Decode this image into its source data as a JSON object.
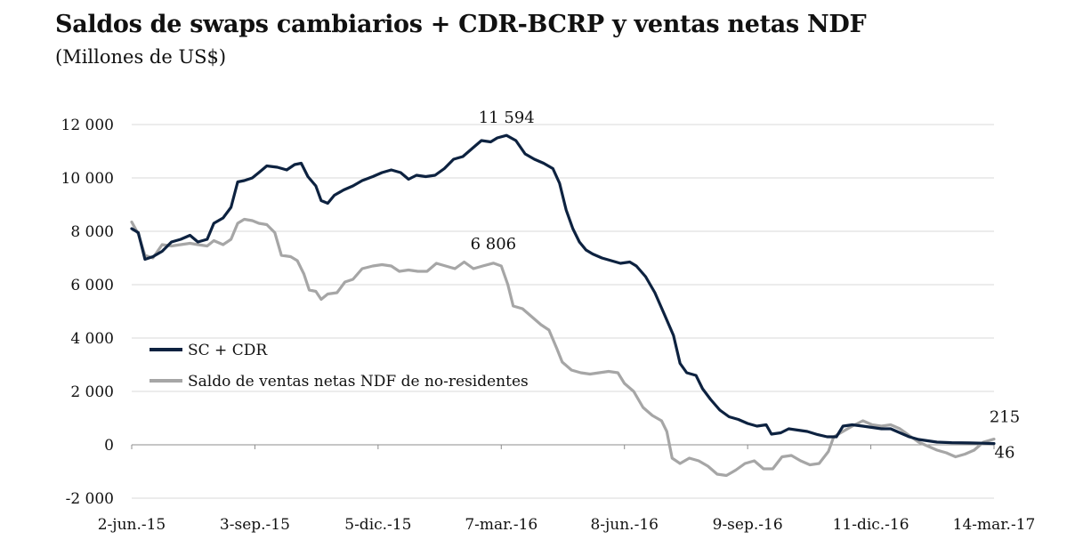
{
  "title": "Saldos de swaps cambiarios + CDR-BCRP y ventas netas NDF",
  "subtitle": "(Millones de US$)",
  "colors": {
    "sc_cdr": "#0d2240",
    "ndf": "#a6a6a6",
    "grid": "#d9d9d9",
    "axis": "#8c8c8c"
  },
  "chart_data": {
    "type": "line",
    "ylim": [
      -2000,
      12000
    ],
    "yticks": [
      -2000,
      0,
      2000,
      4000,
      6000,
      8000,
      10000,
      12000
    ],
    "ytick_labels": [
      "-2 000",
      "0",
      "2 000",
      "4 000",
      "6 000",
      "8 000",
      "10 000",
      "12 000"
    ],
    "xlim": [
      "2015-06-02",
      "2017-03-14"
    ],
    "xticks": [
      "2015-06-02",
      "2015-09-03",
      "2015-12-05",
      "2016-03-07",
      "2016-06-08",
      "2016-09-09",
      "2016-12-11",
      "2017-03-14"
    ],
    "xtick_labels": [
      "2-jun.-15",
      "3-sep.-15",
      "5-dic.-15",
      "7-mar.-16",
      "8-jun.-16",
      "9-sep.-16",
      "11-dic.-16",
      "14-mar.-17"
    ],
    "grid": "horizontal",
    "legend_position": "lower-left",
    "series": [
      {
        "name": "SC + CDR",
        "points": [
          [
            "2015-06-02",
            8100
          ],
          [
            "2015-06-07",
            7950
          ],
          [
            "2015-06-12",
            6950
          ],
          [
            "2015-06-18",
            7050
          ],
          [
            "2015-06-25",
            7250
          ],
          [
            "2015-07-02",
            7600
          ],
          [
            "2015-07-09",
            7700
          ],
          [
            "2015-07-16",
            7850
          ],
          [
            "2015-07-22",
            7600
          ],
          [
            "2015-07-29",
            7700
          ],
          [
            "2015-08-03",
            8300
          ],
          [
            "2015-08-10",
            8500
          ],
          [
            "2015-08-16",
            8900
          ],
          [
            "2015-08-21",
            9850
          ],
          [
            "2015-08-26",
            9900
          ],
          [
            "2015-09-01",
            10000
          ],
          [
            "2015-09-06",
            10200
          ],
          [
            "2015-09-12",
            10450
          ],
          [
            "2015-09-20",
            10400
          ],
          [
            "2015-09-27",
            10300
          ],
          [
            "2015-10-03",
            10500
          ],
          [
            "2015-10-08",
            10550
          ],
          [
            "2015-10-13",
            10050
          ],
          [
            "2015-10-19",
            9700
          ],
          [
            "2015-10-23",
            9150
          ],
          [
            "2015-10-28",
            9050
          ],
          [
            "2015-11-02",
            9350
          ],
          [
            "2015-11-09",
            9550
          ],
          [
            "2015-11-16",
            9700
          ],
          [
            "2015-11-23",
            9900
          ],
          [
            "2015-12-01",
            10050
          ],
          [
            "2015-12-08",
            10200
          ],
          [
            "2015-12-15",
            10300
          ],
          [
            "2015-12-22",
            10200
          ],
          [
            "2015-12-28",
            9950
          ],
          [
            "2016-01-03",
            10100
          ],
          [
            "2016-01-10",
            10050
          ],
          [
            "2016-01-17",
            10100
          ],
          [
            "2016-01-24",
            10350
          ],
          [
            "2016-01-31",
            10700
          ],
          [
            "2016-02-07",
            10800
          ],
          [
            "2016-02-14",
            11100
          ],
          [
            "2016-02-21",
            11400
          ],
          [
            "2016-02-28",
            11350
          ],
          [
            "2016-03-04",
            11500
          ],
          [
            "2016-03-11",
            11594
          ],
          [
            "2016-03-18",
            11400
          ],
          [
            "2016-03-25",
            10900
          ],
          [
            "2016-04-01",
            10700
          ],
          [
            "2016-04-08",
            10550
          ],
          [
            "2016-04-15",
            10350
          ],
          [
            "2016-04-20",
            9800
          ],
          [
            "2016-04-25",
            8800
          ],
          [
            "2016-04-30",
            8100
          ],
          [
            "2016-05-05",
            7600
          ],
          [
            "2016-05-10",
            7300
          ],
          [
            "2016-05-15",
            7150
          ],
          [
            "2016-05-22",
            7000
          ],
          [
            "2016-05-29",
            6900
          ],
          [
            "2016-06-05",
            6800
          ],
          [
            "2016-06-12",
            6850
          ],
          [
            "2016-06-17",
            6700
          ],
          [
            "2016-06-24",
            6300
          ],
          [
            "2016-07-01",
            5700
          ],
          [
            "2016-07-08",
            4900
          ],
          [
            "2016-07-15",
            4100
          ],
          [
            "2016-07-20",
            3050
          ],
          [
            "2016-07-25",
            2700
          ],
          [
            "2016-08-01",
            2600
          ],
          [
            "2016-08-06",
            2100
          ],
          [
            "2016-08-12",
            1700
          ],
          [
            "2016-08-19",
            1300
          ],
          [
            "2016-08-26",
            1050
          ],
          [
            "2016-09-02",
            950
          ],
          [
            "2016-09-09",
            800
          ],
          [
            "2016-09-16",
            700
          ],
          [
            "2016-09-23",
            750
          ],
          [
            "2016-09-27",
            400
          ],
          [
            "2016-10-04",
            450
          ],
          [
            "2016-10-10",
            600
          ],
          [
            "2016-10-17",
            550
          ],
          [
            "2016-10-24",
            500
          ],
          [
            "2016-11-01",
            380
          ],
          [
            "2016-11-08",
            300
          ],
          [
            "2016-11-15",
            300
          ],
          [
            "2016-11-20",
            700
          ],
          [
            "2016-11-27",
            750
          ],
          [
            "2016-12-05",
            700
          ],
          [
            "2016-12-12",
            650
          ],
          [
            "2016-12-19",
            600
          ],
          [
            "2016-12-26",
            600
          ],
          [
            "2017-01-02",
            450
          ],
          [
            "2017-01-09",
            300
          ],
          [
            "2017-01-16",
            200
          ],
          [
            "2017-01-23",
            150
          ],
          [
            "2017-01-30",
            100
          ],
          [
            "2017-02-10",
            80
          ],
          [
            "2017-02-24",
            70
          ],
          [
            "2017-03-06",
            60
          ],
          [
            "2017-03-14",
            46
          ]
        ]
      },
      {
        "name": "Saldo de ventas netas NDF de no-residentes",
        "points": [
          [
            "2015-06-02",
            8350
          ],
          [
            "2015-06-07",
            7900
          ],
          [
            "2015-06-12",
            7100
          ],
          [
            "2015-06-18",
            7000
          ],
          [
            "2015-06-25",
            7500
          ],
          [
            "2015-07-02",
            7450
          ],
          [
            "2015-07-09",
            7500
          ],
          [
            "2015-07-16",
            7550
          ],
          [
            "2015-07-22",
            7500
          ],
          [
            "2015-07-29",
            7450
          ],
          [
            "2015-08-03",
            7650
          ],
          [
            "2015-08-10",
            7500
          ],
          [
            "2015-08-16",
            7700
          ],
          [
            "2015-08-21",
            8300
          ],
          [
            "2015-08-26",
            8450
          ],
          [
            "2015-09-01",
            8400
          ],
          [
            "2015-09-06",
            8300
          ],
          [
            "2015-09-12",
            8250
          ],
          [
            "2015-09-18",
            7950
          ],
          [
            "2015-09-23",
            7100
          ],
          [
            "2015-09-30",
            7050
          ],
          [
            "2015-10-05",
            6900
          ],
          [
            "2015-10-10",
            6400
          ],
          [
            "2015-10-14",
            5800
          ],
          [
            "2015-10-19",
            5750
          ],
          [
            "2015-10-23",
            5450
          ],
          [
            "2015-10-28",
            5650
          ],
          [
            "2015-11-04",
            5700
          ],
          [
            "2015-11-10",
            6100
          ],
          [
            "2015-11-16",
            6200
          ],
          [
            "2015-11-23",
            6600
          ],
          [
            "2015-12-01",
            6700
          ],
          [
            "2015-12-08",
            6750
          ],
          [
            "2015-12-15",
            6700
          ],
          [
            "2015-12-21",
            6500
          ],
          [
            "2015-12-28",
            6550
          ],
          [
            "2016-01-04",
            6500
          ],
          [
            "2016-01-11",
            6500
          ],
          [
            "2016-01-18",
            6800
          ],
          [
            "2016-01-25",
            6700
          ],
          [
            "2016-02-01",
            6600
          ],
          [
            "2016-02-08",
            6850
          ],
          [
            "2016-02-15",
            6600
          ],
          [
            "2016-02-22",
            6700
          ],
          [
            "2016-03-01",
            6806
          ],
          [
            "2016-03-07",
            6700
          ],
          [
            "2016-03-12",
            6000
          ],
          [
            "2016-03-16",
            5200
          ],
          [
            "2016-03-23",
            5100
          ],
          [
            "2016-03-30",
            4800
          ],
          [
            "2016-04-06",
            4500
          ],
          [
            "2016-04-12",
            4300
          ],
          [
            "2016-04-18",
            3600
          ],
          [
            "2016-04-22",
            3100
          ],
          [
            "2016-04-29",
            2800
          ],
          [
            "2016-05-06",
            2700
          ],
          [
            "2016-05-13",
            2650
          ],
          [
            "2016-05-20",
            2700
          ],
          [
            "2016-05-27",
            2750
          ],
          [
            "2016-06-03",
            2700
          ],
          [
            "2016-06-08",
            2300
          ],
          [
            "2016-06-15",
            2000
          ],
          [
            "2016-06-22",
            1400
          ],
          [
            "2016-06-29",
            1100
          ],
          [
            "2016-07-06",
            900
          ],
          [
            "2016-07-10",
            500
          ],
          [
            "2016-07-14",
            -500
          ],
          [
            "2016-07-20",
            -700
          ],
          [
            "2016-07-27",
            -500
          ],
          [
            "2016-08-03",
            -600
          ],
          [
            "2016-08-10",
            -800
          ],
          [
            "2016-08-17",
            -1100
          ],
          [
            "2016-08-24",
            -1150
          ],
          [
            "2016-08-31",
            -950
          ],
          [
            "2016-09-07",
            -700
          ],
          [
            "2016-09-14",
            -600
          ],
          [
            "2016-09-21",
            -900
          ],
          [
            "2016-09-28",
            -900
          ],
          [
            "2016-10-05",
            -450
          ],
          [
            "2016-10-12",
            -400
          ],
          [
            "2016-10-19",
            -600
          ],
          [
            "2016-10-26",
            -750
          ],
          [
            "2016-11-02",
            -700
          ],
          [
            "2016-11-09",
            -250
          ],
          [
            "2016-11-13",
            300
          ],
          [
            "2016-11-20",
            500
          ],
          [
            "2016-11-27",
            700
          ],
          [
            "2016-12-05",
            900
          ],
          [
            "2016-12-12",
            750
          ],
          [
            "2016-12-19",
            700
          ],
          [
            "2016-12-26",
            750
          ],
          [
            "2017-01-02",
            600
          ],
          [
            "2017-01-09",
            350
          ],
          [
            "2017-01-16",
            100
          ],
          [
            "2017-01-23",
            -50
          ],
          [
            "2017-01-30",
            -200
          ],
          [
            "2017-02-06",
            -300
          ],
          [
            "2017-02-13",
            -450
          ],
          [
            "2017-02-20",
            -350
          ],
          [
            "2017-02-27",
            -200
          ],
          [
            "2017-03-06",
            100
          ],
          [
            "2017-03-14",
            215
          ]
        ]
      }
    ],
    "annotations": [
      {
        "text": "11 594",
        "date": "2016-03-11",
        "value": 11594
      },
      {
        "text": "6 806",
        "date": "2016-03-01",
        "value": 6806
      },
      {
        "text": "215",
        "date": "2017-03-14",
        "value": 215
      },
      {
        "text": "46",
        "date": "2017-03-14",
        "value": 46
      }
    ]
  }
}
